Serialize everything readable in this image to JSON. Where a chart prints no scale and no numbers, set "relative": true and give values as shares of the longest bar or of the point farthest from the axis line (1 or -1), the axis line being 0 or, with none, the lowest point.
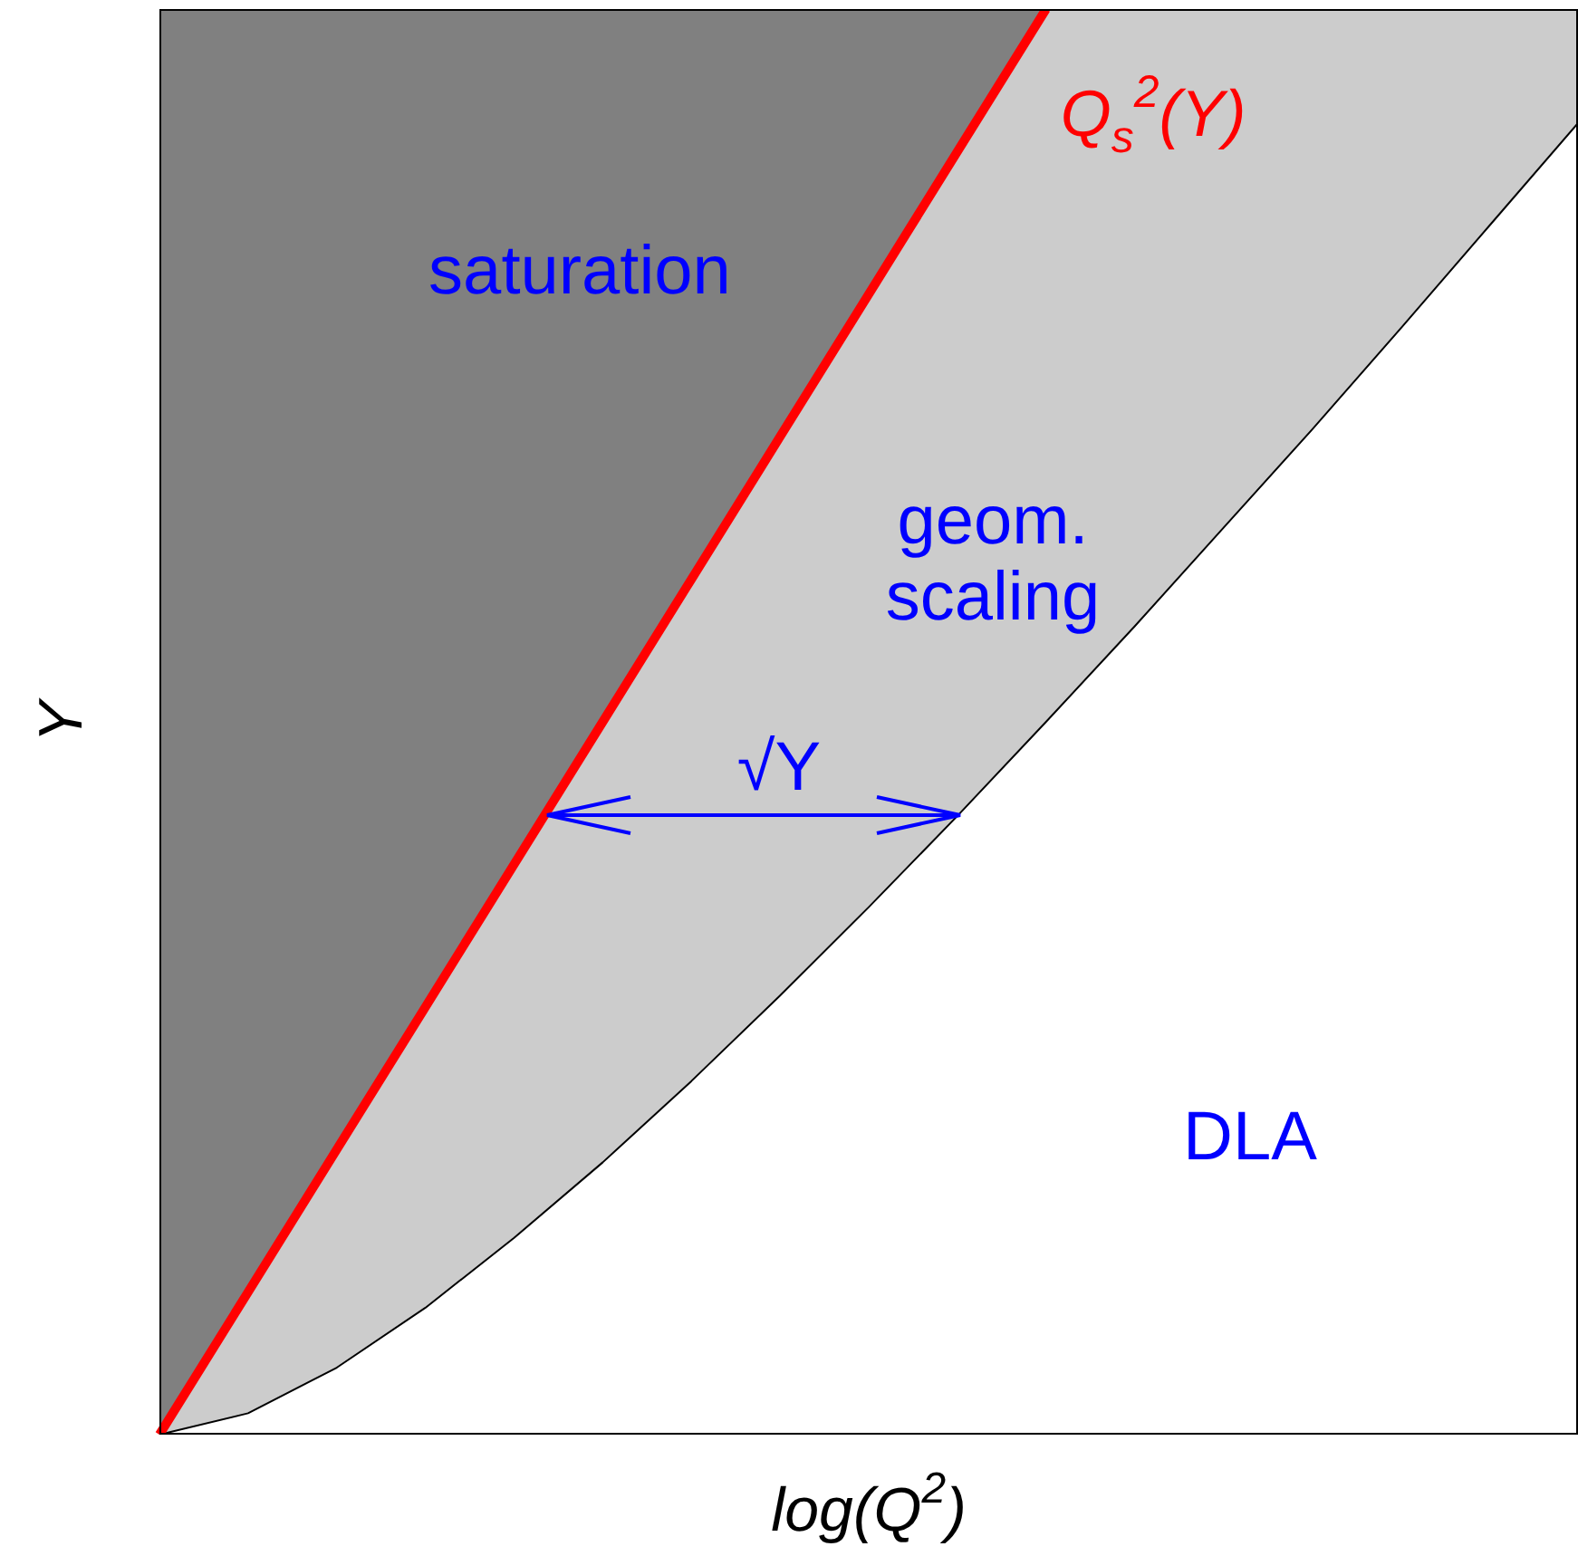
{
  "chart_data": {
    "type": "area",
    "relative": true,
    "xlabel": "log(Q$^{2}$)",
    "ylabel": "Y",
    "categories": [
      null,
      null,
      null,
      null,
      null,
      null,
      null,
      null,
      null,
      null,
      null,
      null,
      null,
      null,
      null,
      null,
      null
    ],
    "series": [
      {
        "color": "#ffffff",
        "values": [
          0,
          0.015,
          0.047,
          0.089,
          0.138,
          0.191,
          0.248,
          0.308,
          0.37,
          0.434,
          0.5,
          0.567,
          0.636,
          0.705,
          0.776,
          0.848,
          0.92
        ]
      },
      {
        "type": "line",
        "name": "Q$_{s}$$^{2}$(Y)",
        "color": "#ff0000",
        "values": [
          0,
          0.1,
          0.2,
          0.3,
          0.4,
          0.5,
          0.6,
          0.7,
          0.8,
          0.9,
          1,
          null,
          null,
          null,
          null,
          null,
          null
        ]
      }
    ],
    "annotations": [
      "saturation",
      "geom.\nscaling",
      "√Y",
      "DLA"
    ],
    "legend": false
  }
}
